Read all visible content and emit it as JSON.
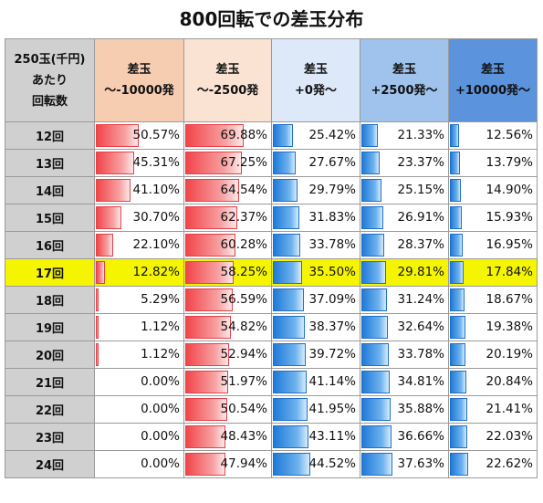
{
  "title": "800回転での差玉分布",
  "header": {
    "row_label_lines": [
      "250玉(千円)",
      "あたり",
      "回転数"
    ],
    "columns": [
      {
        "line1": "差玉",
        "line2": "～-10000発"
      },
      {
        "line1": "差玉",
        "line2": "～-2500発"
      },
      {
        "line1": "差玉",
        "line2": "+0発～"
      },
      {
        "line1": "差玉",
        "line2": "+2500発～"
      },
      {
        "line1": "差玉",
        "line2": "+10000発～"
      }
    ]
  },
  "colors": {
    "header_col1": "#f7cdb2",
    "header_col2": "#fbe3d4",
    "header_col3": "#dde9f9",
    "header_col4": "#9fc3ec",
    "header_col5": "#5b93dc",
    "row_header": "#d0d0d0",
    "highlight": "#f5f500",
    "bar_red": "#f2454a",
    "bar_blue": "#1f7ad8"
  },
  "highlight_row": "17回",
  "chart_data": {
    "type": "table",
    "title": "800回転での差玉分布",
    "row_header_label": "250玉(千円)あたり回転数",
    "columns": [
      "差玉～-10000発",
      "差玉～-2500発",
      "差玉+0発～",
      "差玉+2500発～",
      "差玉+10000発～"
    ],
    "rows": [
      {
        "label": "12回",
        "values": [
          "50.57%",
          "69.88%",
          "25.42%",
          "21.33%",
          "12.56%"
        ]
      },
      {
        "label": "13回",
        "values": [
          "45.31%",
          "67.25%",
          "27.67%",
          "23.37%",
          "13.79%"
        ]
      },
      {
        "label": "14回",
        "values": [
          "41.10%",
          "64.54%",
          "29.79%",
          "25.15%",
          "14.90%"
        ]
      },
      {
        "label": "15回",
        "values": [
          "30.70%",
          "62.37%",
          "31.83%",
          "26.91%",
          "15.93%"
        ]
      },
      {
        "label": "16回",
        "values": [
          "22.10%",
          "60.28%",
          "33.78%",
          "28.37%",
          "16.95%"
        ]
      },
      {
        "label": "17回",
        "values": [
          "12.82%",
          "58.25%",
          "35.50%",
          "29.81%",
          "17.84%"
        ]
      },
      {
        "label": "18回",
        "values": [
          "5.29%",
          "56.59%",
          "37.09%",
          "31.24%",
          "18.67%"
        ]
      },
      {
        "label": "19回",
        "values": [
          "1.12%",
          "54.82%",
          "38.37%",
          "32.64%",
          "19.38%"
        ]
      },
      {
        "label": "20回",
        "values": [
          "1.12%",
          "52.94%",
          "39.72%",
          "33.78%",
          "20.19%"
        ]
      },
      {
        "label": "21回",
        "values": [
          "0.00%",
          "51.97%",
          "41.14%",
          "34.81%",
          "20.84%"
        ]
      },
      {
        "label": "22回",
        "values": [
          "0.00%",
          "50.54%",
          "41.95%",
          "35.88%",
          "21.41%"
        ]
      },
      {
        "label": "23回",
        "values": [
          "0.00%",
          "48.43%",
          "43.11%",
          "36.66%",
          "22.03%"
        ]
      },
      {
        "label": "24回",
        "values": [
          "0.00%",
          "47.94%",
          "44.52%",
          "37.63%",
          "22.62%"
        ]
      }
    ]
  }
}
